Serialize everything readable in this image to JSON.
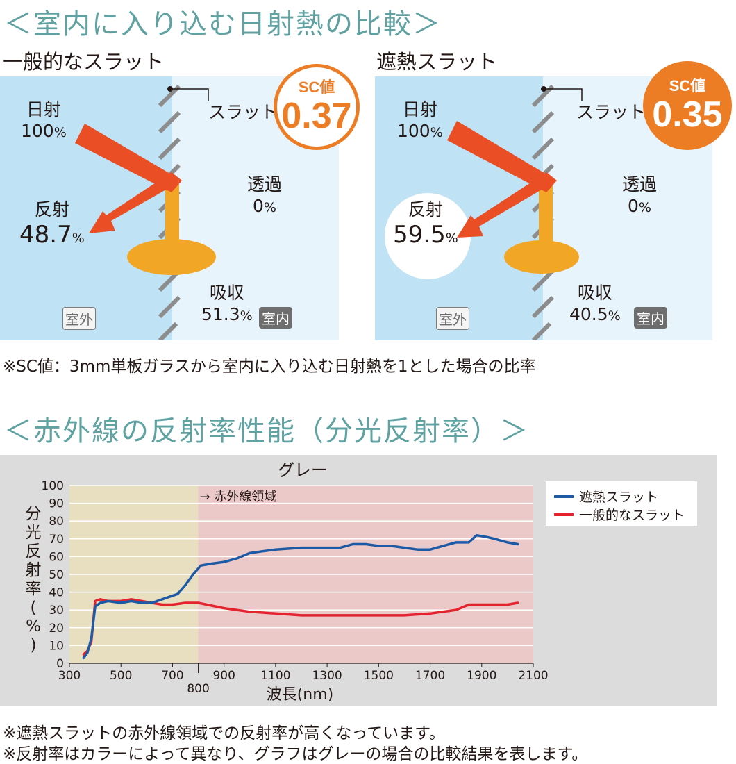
{
  "section1": {
    "title": "＜室内に入り込む日射熱の比較＞",
    "left": {
      "heading": "一般的なスラット",
      "slat_label": "スラット",
      "sc_label": "SC値",
      "sc_value": "0.37",
      "solar_label": "日射",
      "solar_value": "100",
      "reflect_label": "反射",
      "reflect_value": "48.7",
      "transmit_label": "透過",
      "transmit_value": "0",
      "absorb_label": "吸収",
      "absorb_value": "51.3",
      "outdoor": "室外",
      "indoor": "室内",
      "percent": "%"
    },
    "right": {
      "heading": "遮熱スラット",
      "slat_label": "スラット",
      "sc_label": "SC値",
      "sc_value": "0.35",
      "solar_label": "日射",
      "solar_value": "100",
      "reflect_label": "反射",
      "reflect_value": "59.5",
      "transmit_label": "透過",
      "transmit_value": "0",
      "absorb_label": "吸収",
      "absorb_value": "40.5",
      "outdoor": "室外",
      "indoor": "室内",
      "percent": "%"
    },
    "note": "※SC値：3mm単板ガラスから室内に入り込む日射熱を1とした場合の比率"
  },
  "section2": {
    "title": "＜赤外線の反射率性能（分光反射率）＞",
    "notes": [
      "※遮熱スラットの赤外線領域での反射率が高くなっています。",
      "※反射率はカラーによって異なり、グラフはグレーの場合の比較結果を表します。"
    ]
  },
  "colors": {
    "outdoor_bg": "#bfe2f4",
    "indoor_bg": "#e8f4fb",
    "arrow": "#e94e24",
    "absorb": "#f2a626",
    "sc_orange": "#ed7d25",
    "title_teal": "#5fa2a1",
    "blue_line": "#1d5aa6",
    "red_line": "#e3232e",
    "visible_band": "#e8dfc0",
    "ir_band": "#ecc9c9",
    "chart_panel": "#dcdcdc"
  },
  "chart_data": {
    "type": "line",
    "title": "グレー",
    "xlabel": "波長(nm)",
    "ylabel": "分光反射率(%)",
    "xlim": [
      300,
      2100
    ],
    "ylim": [
      0,
      100
    ],
    "xticks": [
      300,
      500,
      700,
      900,
      1100,
      1300,
      1500,
      1700,
      1900,
      2100
    ],
    "extra_xtick": 800,
    "yticks": [
      0,
      10,
      20,
      30,
      40,
      50,
      60,
      70,
      80,
      90,
      100
    ],
    "region_split": 800,
    "region_label": "→ 赤外線領域",
    "legend": "top-right",
    "series": [
      {
        "name": "遮熱スラット",
        "color": "#1d5aa6",
        "x": [
          355,
          370,
          385,
          400,
          420,
          450,
          500,
          540,
          580,
          620,
          660,
          700,
          720,
          750,
          780,
          810,
          850,
          900,
          950,
          1000,
          1050,
          1100,
          1200,
          1300,
          1350,
          1400,
          1450,
          1500,
          1550,
          1600,
          1650,
          1700,
          1750,
          1800,
          1850,
          1880,
          1920,
          1950,
          2000,
          2040
        ],
        "y": [
          3,
          6,
          14,
          32,
          34,
          35,
          34,
          35,
          34,
          34,
          36,
          38,
          39,
          44,
          50,
          55,
          56,
          57,
          59,
          62,
          63,
          64,
          65,
          65,
          65,
          67,
          67,
          66,
          66,
          65,
          64,
          64,
          66,
          68,
          68,
          72,
          71,
          70,
          68,
          67
        ]
      },
      {
        "name": "一般的なスラット",
        "color": "#e3232e",
        "x": [
          355,
          370,
          385,
          400,
          420,
          450,
          500,
          540,
          580,
          620,
          660,
          700,
          750,
          800,
          900,
          1000,
          1100,
          1200,
          1300,
          1400,
          1450,
          1500,
          1600,
          1700,
          1800,
          1850,
          1880,
          1950,
          2000,
          2040
        ],
        "y": [
          5,
          7,
          12,
          35,
          36,
          35,
          35,
          36,
          35,
          34,
          33,
          33,
          34,
          34,
          31,
          29,
          28,
          27,
          27,
          27,
          27,
          27,
          27,
          28,
          30,
          33,
          33,
          33,
          33,
          34
        ]
      }
    ]
  }
}
